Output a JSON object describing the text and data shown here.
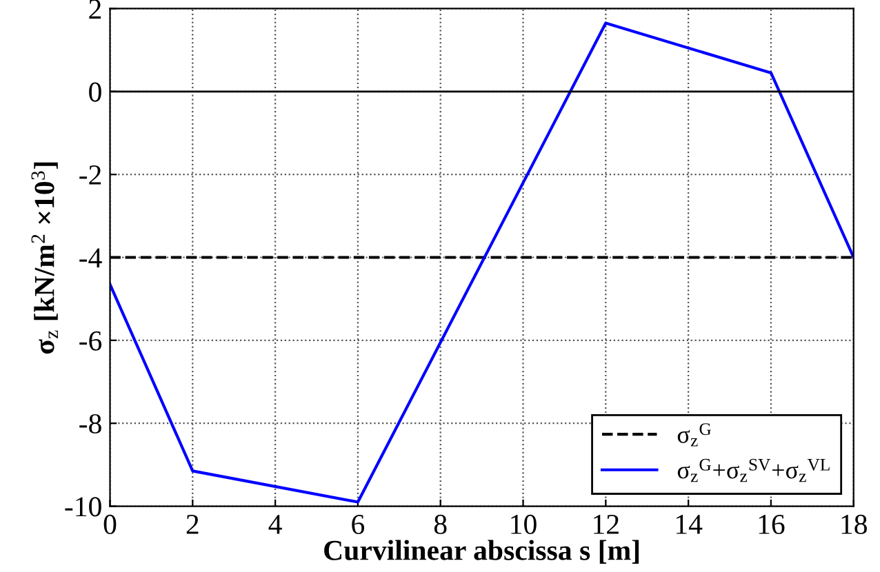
{
  "chart_data": {
    "type": "line",
    "xlabel": "Curvilinear abscissa s [m]",
    "ylabel": "σ$_{z}$ [kN/m$^{2}$ ×10$^{3}$]",
    "series": [
      {
        "name": "σ$_{z}$$^{G}$",
        "color": "#000000",
        "line_style": "dashed",
        "x": [
          0,
          18
        ],
        "values": [
          -4,
          -4
        ]
      },
      {
        "name": "σ$_{z}$$^{G}$+σ$_{z}$$^{SV}$+σ$_{z}$$^{VL}$",
        "color": "#0000ff",
        "line_style": "solid",
        "x": [
          0,
          2,
          6,
          12,
          16,
          18
        ],
        "values": [
          -4.65,
          -9.15,
          -9.9,
          1.65,
          0.45,
          -4.0
        ]
      }
    ],
    "ref_lines": [
      {
        "axis": "y",
        "value": 0,
        "color": "#000000",
        "line_style": "solid"
      }
    ],
    "xlim": [
      0,
      18
    ],
    "xticks": [
      0,
      2,
      4,
      6,
      8,
      10,
      12,
      14,
      16,
      18
    ],
    "ylim": [
      -10,
      2
    ],
    "yticks": [
      {
        "value": -10,
        "label": "-10"
      },
      {
        "value": -8,
        "label": "-8"
      },
      {
        "value": -6,
        "label": "-6"
      },
      {
        "value": -4,
        "label": "-4"
      },
      {
        "value": -2,
        "label": "-2"
      },
      0,
      2
    ],
    "grid": true,
    "legend": "bottom right",
    "marker": "none"
  }
}
